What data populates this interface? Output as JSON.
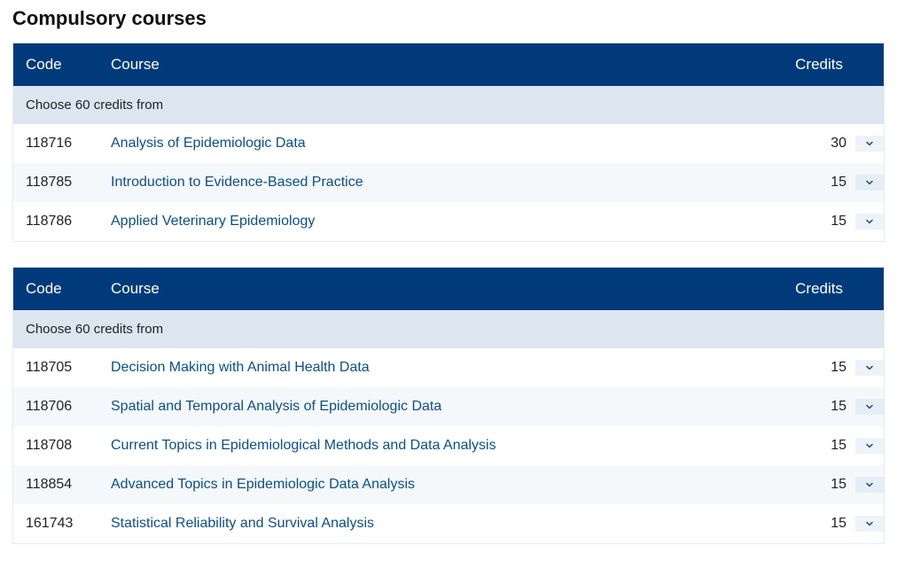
{
  "section_title": "Compulsory courses",
  "columns": {
    "code": "Code",
    "course": "Course",
    "credits": "Credits"
  },
  "colors": {
    "header_bg": "#003a7a",
    "header_text": "#ffffff",
    "subheader_bg": "#dbe6f0",
    "row_alt_bg": "#f5f8fb",
    "link_color": "#0b4f8a",
    "border_color": "#e5ecf2",
    "chevron_color": "#0b4f8a"
  },
  "tables": [
    {
      "subheader": "Choose 60 credits from",
      "rows": [
        {
          "code": "118716",
          "course": "Analysis of Epidemiologic Data",
          "credits": "30"
        },
        {
          "code": "118785",
          "course": "Introduction to Evidence-Based Practice",
          "credits": "15"
        },
        {
          "code": "118786",
          "course": "Applied Veterinary Epidemiology",
          "credits": "15"
        }
      ]
    },
    {
      "subheader": "Choose 60 credits from",
      "rows": [
        {
          "code": "118705",
          "course": "Decision Making with Animal Health Data",
          "credits": "15"
        },
        {
          "code": "118706",
          "course": "Spatial and Temporal Analysis of Epidemiologic Data",
          "credits": "15"
        },
        {
          "code": "118708",
          "course": "Current Topics in Epidemiological Methods and Data Analysis",
          "credits": "15"
        },
        {
          "code": "118854",
          "course": "Advanced Topics in Epidemiologic Data Analysis",
          "credits": "15"
        },
        {
          "code": "161743",
          "course": "Statistical Reliability and Survival Analysis",
          "credits": "15"
        }
      ]
    }
  ]
}
